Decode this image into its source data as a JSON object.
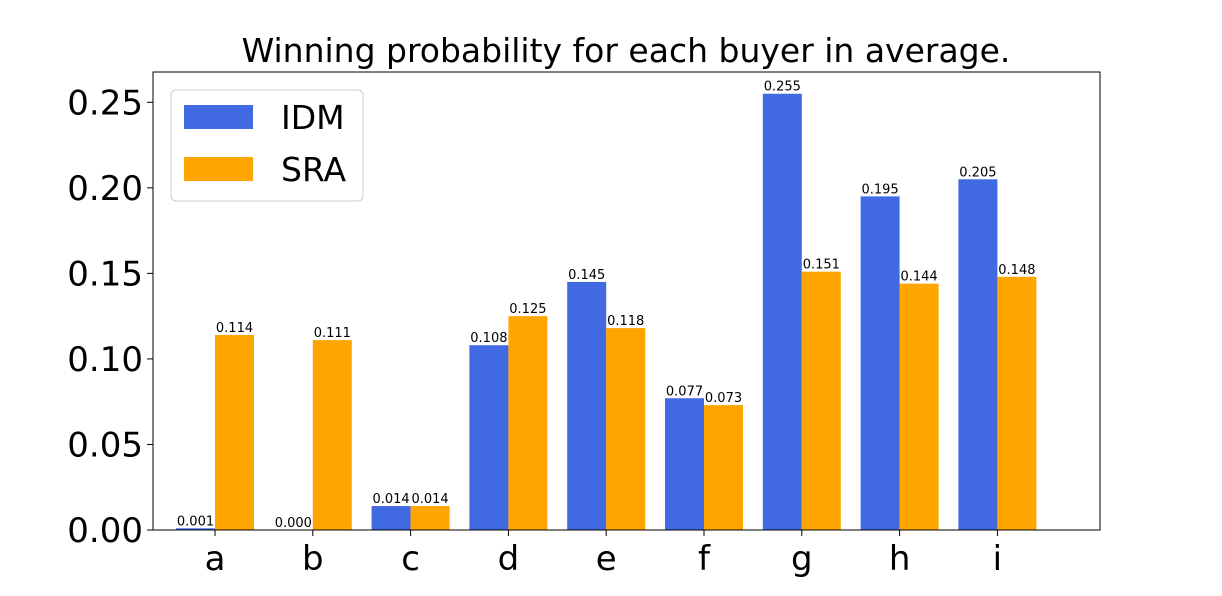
{
  "chart_data": {
    "type": "bar",
    "title": "Winning probability for each buyer in average.",
    "xlabel": "",
    "ylabel": "",
    "categories": [
      "a",
      "b",
      "c",
      "d",
      "e",
      "f",
      "g",
      "h",
      "i"
    ],
    "series": [
      {
        "name": "IDM",
        "color": "#4169E1",
        "values": [
          0.001,
          0.0,
          0.014,
          0.108,
          0.145,
          0.077,
          0.255,
          0.195,
          0.205
        ],
        "labels": [
          "0.001",
          "0.000",
          "0.014",
          "0.108",
          "0.145",
          "0.077",
          "0.255",
          "0.195",
          "0.205"
        ]
      },
      {
        "name": "SRA",
        "color": "#FFA500",
        "values": [
          0.114,
          0.111,
          0.014,
          0.125,
          0.118,
          0.073,
          0.151,
          0.144,
          0.148
        ],
        "labels": [
          "0.114",
          "0.111",
          "0.014",
          "0.125",
          "0.118",
          "0.073",
          "0.151",
          "0.144",
          "0.148"
        ]
      }
    ],
    "yticks": [
      "0.00",
      "0.05",
      "0.10",
      "0.15",
      "0.20",
      "0.25"
    ],
    "ytick_values": [
      0,
      0.05,
      0.1,
      0.15,
      0.2,
      0.25
    ],
    "ylim": [
      0,
      0.2677
    ],
    "grid": false,
    "legend_position": "top-left"
  }
}
